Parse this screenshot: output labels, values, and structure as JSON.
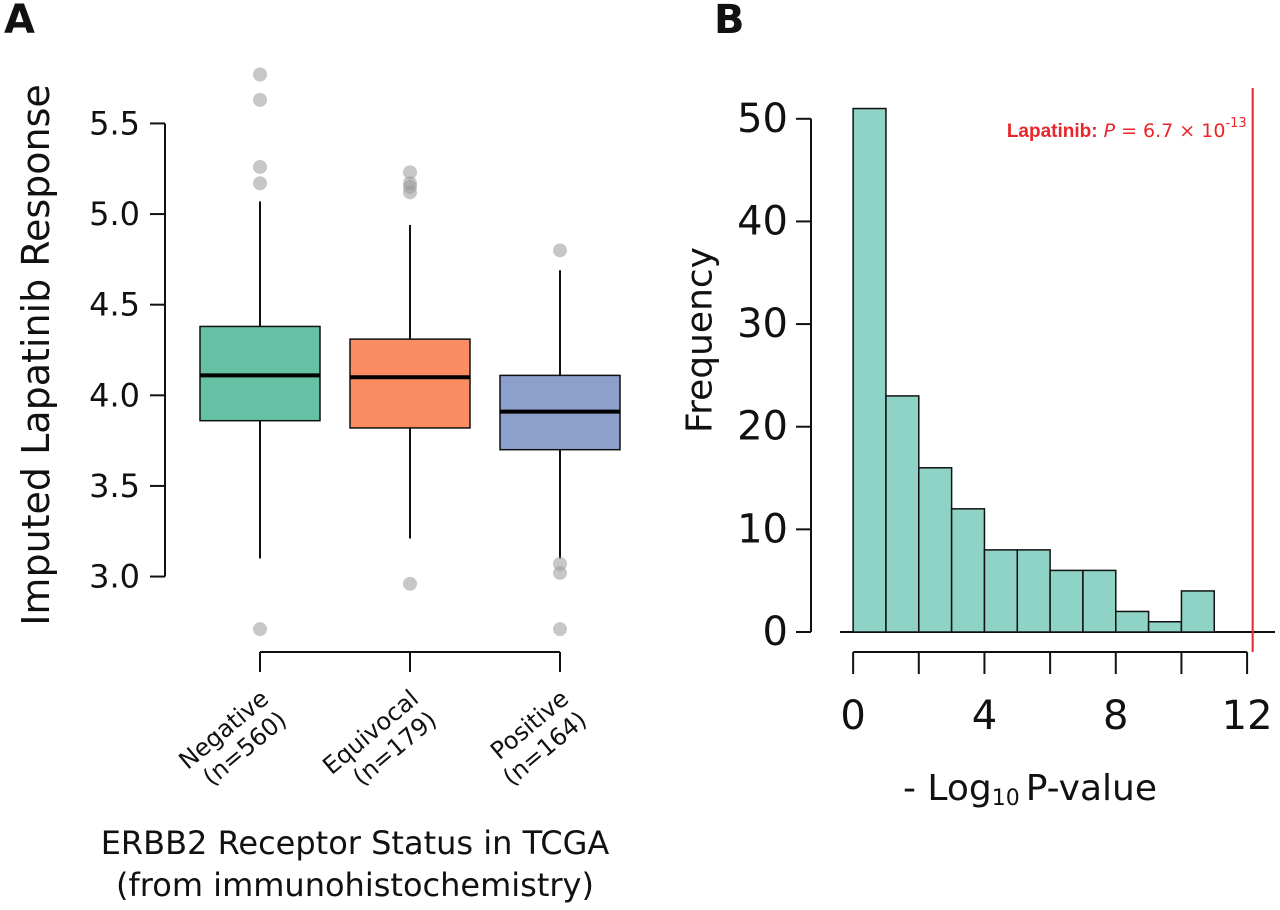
{
  "chart_data": [
    {
      "type": "box",
      "panel_label": "A",
      "y_label": "Imputed Lapatinib Response",
      "x_label": [
        "ERBB2 Receptor Status in TCGA",
        "(from immunohistochemistry)"
      ],
      "categories": [
        [
          "Negative",
          "(n=560)"
        ],
        [
          "Equivocal",
          "(n=179)"
        ],
        [
          "Positive",
          "(n=164)"
        ]
      ],
      "boxes": [
        {
          "color": "#66c2a5",
          "whisker_low": 3.1,
          "q1": 3.86,
          "median": 4.11,
          "q3": 4.38,
          "whisker_high": 5.07,
          "outliers": [
            5.77,
            5.63,
            5.26,
            5.17,
            2.71
          ]
        },
        {
          "color": "#fc8d62",
          "whisker_low": 3.21,
          "q1": 3.82,
          "median": 4.1,
          "q3": 4.31,
          "whisker_high": 4.94,
          "outliers": [
            5.23,
            5.17,
            5.15,
            5.12,
            2.96
          ]
        },
        {
          "color": "#8da0cb",
          "whisker_low": 3.1,
          "q1": 3.7,
          "median": 3.91,
          "q3": 4.11,
          "whisker_high": 4.69,
          "outliers": [
            4.8,
            3.07,
            3.02,
            2.71
          ]
        }
      ],
      "ylim": [
        2.65,
        5.85
      ],
      "yticks": [
        {
          "value": 3,
          "label": "3.0"
        },
        3.5,
        {
          "value": 4,
          "label": "4.0"
        },
        4.5,
        {
          "value": 5,
          "label": "5.0"
        },
        5.5
      ]
    },
    {
      "type": "histogram",
      "panel_label": "B",
      "y_label": "Frequency",
      "x_label": {
        "text": "- Log",
        "subscript": "10",
        "suffix": "P-value"
      },
      "bins": [
        0,
        1,
        2,
        3,
        4,
        5,
        6,
        7,
        8,
        9,
        10,
        11
      ],
      "counts": [
        51,
        23,
        16,
        12,
        8,
        8,
        6,
        6,
        2,
        1,
        4
      ],
      "color": "#8ed3c6",
      "xlim": [
        -0.4,
        12.85
      ],
      "ylim": [
        0,
        53
      ],
      "xticks": [
        0,
        4,
        8,
        12
      ],
      "minor_xticks": [
        2,
        6,
        10
      ],
      "yticks": [
        0,
        10,
        20,
        30,
        40,
        50
      ],
      "reference_line": {
        "value": 12.17,
        "color": "#e8262b",
        "label": "Lapatinib:",
        "symbol": "P",
        "text": "= 6.7 × 10",
        "exponent": "-13"
      }
    }
  ]
}
